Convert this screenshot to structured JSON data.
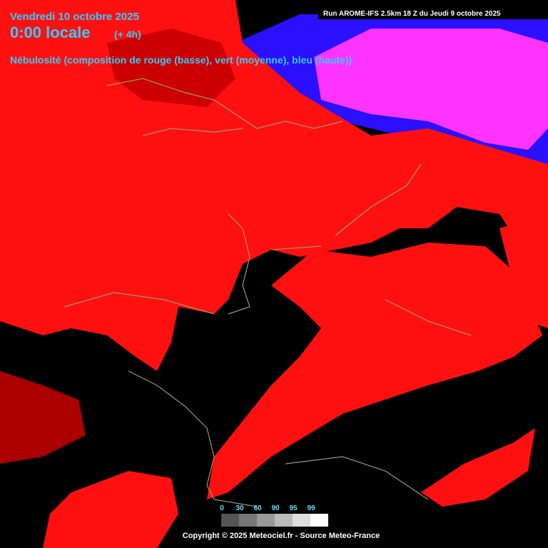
{
  "header": {
    "date": "Vendredi 10 octobre 2025",
    "time": "0:00 locale",
    "offset": "(+ 4h)",
    "subtitle": "Nébulosité (composition de rouge (basse), vert (moyenne), bleu (haute))",
    "run": "Run AROME-IFS 2.5km 18 Z du Jeudi 9 octobre 2025"
  },
  "legend": {
    "labels": [
      "0",
      "30",
      "60",
      "90",
      "95",
      "99"
    ]
  },
  "footer": {
    "copyright": "Copyright © 2025 Meteociel.fr - Source Meteo-France"
  }
}
